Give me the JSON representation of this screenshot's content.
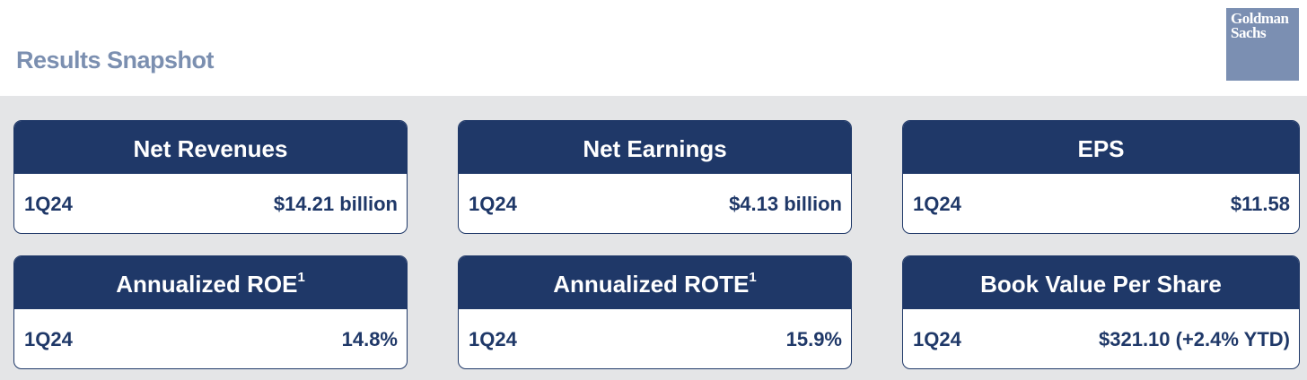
{
  "header": {
    "title": "Results Snapshot",
    "logo_text": "Goldman Sachs",
    "logo_line1": "Goldman",
    "logo_line2": "Sachs"
  },
  "colors": {
    "navy": "#1f3868",
    "title": "#7b8fb0",
    "logo": "#7b8fb2",
    "background": "#e4e5e7"
  },
  "cards": [
    {
      "title": "Net Revenues",
      "sup": "",
      "period": "1Q24",
      "value": "$14.21 billion"
    },
    {
      "title": "Net Earnings",
      "sup": "",
      "period": "1Q24",
      "value": "$4.13 billion"
    },
    {
      "title": "EPS",
      "sup": "",
      "period": "1Q24",
      "value": "$11.58"
    },
    {
      "title": "Annualized ROE",
      "sup": "1",
      "period": "1Q24",
      "value": "14.8%"
    },
    {
      "title": "Annualized ROTE",
      "sup": "1",
      "period": "1Q24",
      "value": "15.9%"
    },
    {
      "title": "Book Value Per Share",
      "sup": "",
      "period": "1Q24",
      "value": "$321.10 (+2.4% YTD)"
    }
  ]
}
